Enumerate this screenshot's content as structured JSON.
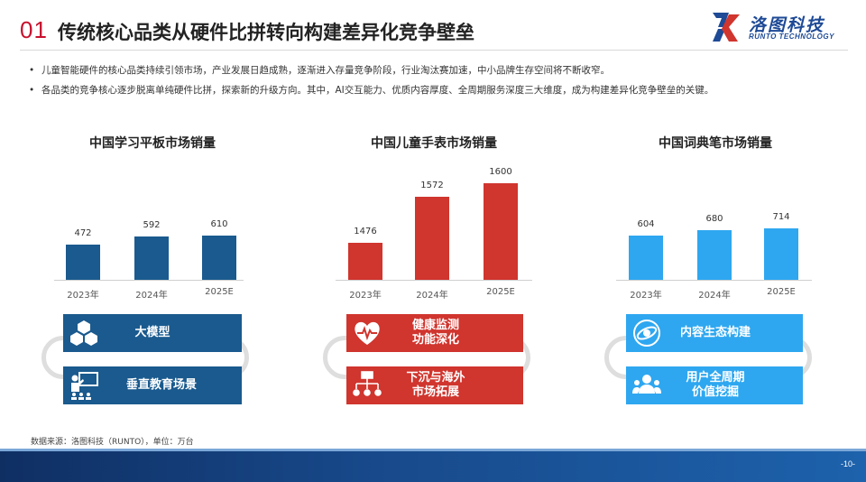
{
  "header": {
    "section_number": "01",
    "title": "传统核心品类从硬件比拼转向构建差异化竞争壁垒"
  },
  "logo": {
    "name_cn": "洛图科技",
    "name_en": "RUNTO TECHNOLOGY"
  },
  "bullets": [
    "儿童智能硬件的核心品类持续引领市场，产业发展日趋成熟，逐渐进入存量竞争阶段，行业淘汰赛加速，中小品牌生存空间将不断收窄。",
    "各品类的竞争核心逐步脱离单纯硬件比拼，探索新的升级方向。其中，AI交互能力、优质内容厚度、全周期服务深度三大维度，成为构建差异化竞争壁垒的关键。"
  ],
  "chart_data": [
    {
      "type": "bar",
      "title": "中国学习平板市场销量",
      "categories": [
        "2023年",
        "2024年",
        "2025E"
      ],
      "values": [
        472,
        592,
        610
      ],
      "color": "#1a5a8e"
    },
    {
      "type": "bar",
      "title": "中国儿童手表市场销量",
      "categories": [
        "2023年",
        "2024年",
        "2025E"
      ],
      "values": [
        1476,
        1572,
        1600
      ],
      "color": "#d0352e"
    },
    {
      "type": "bar",
      "title": "中国词典笔市场销量",
      "categories": [
        "2023年",
        "2024年",
        "2025E"
      ],
      "values": [
        604,
        680,
        714
      ],
      "color": "#2ea7f0"
    }
  ],
  "cards": {
    "tablet": [
      {
        "label": "大模型",
        "icon": "cubes-icon"
      },
      {
        "label": "垂直教育场景",
        "icon": "teacher-board-icon"
      }
    ],
    "watch": [
      {
        "label": "健康监测\n功能深化",
        "icon": "heart-pulse-icon"
      },
      {
        "label": "下沉与海外\n市场拓展",
        "icon": "network-tree-icon"
      }
    ],
    "pen": [
      {
        "label": "内容生态构建",
        "icon": "orbit-icon"
      },
      {
        "label": "用户全周期\n价值挖掘",
        "icon": "users-icon"
      }
    ]
  },
  "source": "数据来源：洛图科技（RUNTO），单位：万台",
  "page_number": "-10-",
  "colors": {
    "brand_red": "#c8102e",
    "brand_blue": "#1e4a96",
    "tablet_blue": "#1a5a8e",
    "watch_red": "#d0352e",
    "pen_blue": "#2ea7f0"
  }
}
